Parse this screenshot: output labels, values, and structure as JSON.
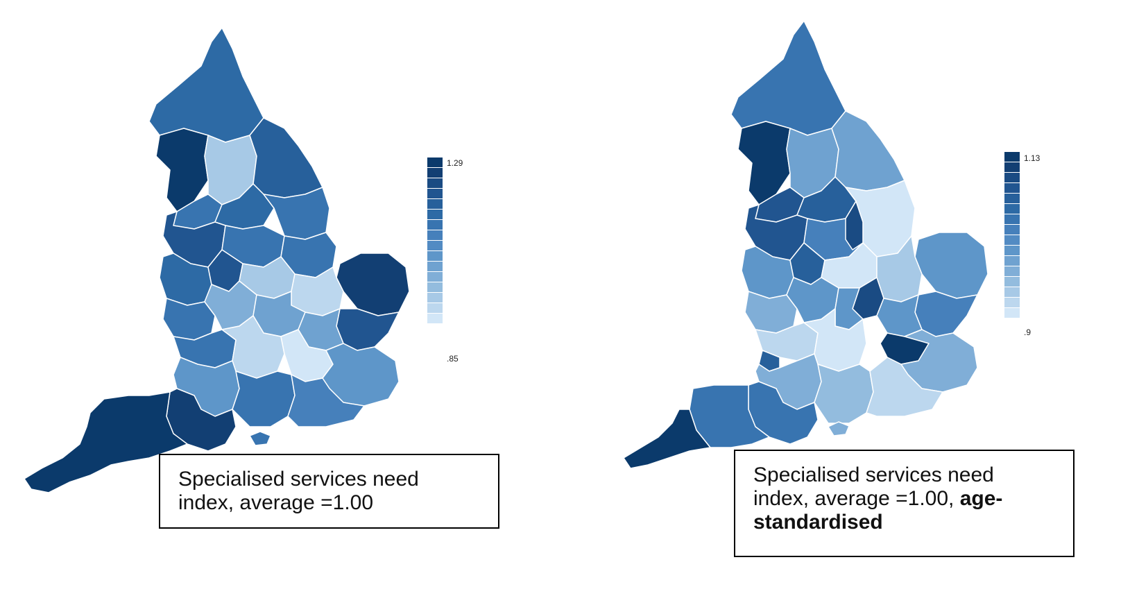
{
  "colors": {
    "ramp": [
      "#0b3a6b",
      "#123f73",
      "#1a4b83",
      "#215590",
      "#27609b",
      "#2d6aa5",
      "#3874b0",
      "#4680bb",
      "#528bc3",
      "#5e96c9",
      "#6fa2d0",
      "#80aed7",
      "#93bcde",
      "#a7c9e6",
      "#bcd7ee",
      "#d2e6f7"
    ],
    "border": "#ffffff"
  },
  "maps": [
    {
      "legend": {
        "max_label": "1.29",
        "min_label": ".85"
      },
      "caption": {
        "text": "Specialised services need index, average =1.00",
        "bold": ""
      }
    },
    {
      "legend": {
        "max_label": "1.13",
        "min_label": ".9"
      },
      "caption": {
        "text": "Specialised services need index, average =1.00,",
        "bold": "age-standardised"
      }
    }
  ]
}
